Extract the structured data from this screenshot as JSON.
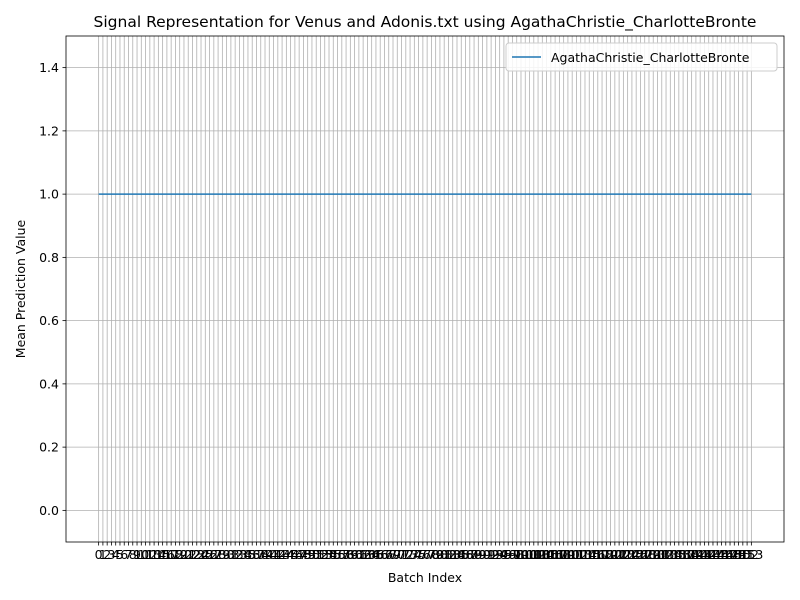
{
  "chart_data": {
    "type": "line",
    "title": "Signal Representation for Venus and Adonis.txt using AgathaChristie_CharlotteBronte",
    "xlabel": "Batch Index",
    "ylabel": "Mean Prediction Value",
    "x": [
      0,
      1,
      2,
      3,
      4,
      5,
      6,
      7,
      8,
      9,
      10,
      11,
      12,
      13,
      14,
      15,
      16,
      17,
      18,
      19,
      20,
      21,
      22,
      23,
      24,
      25,
      26,
      27,
      28,
      29,
      30,
      31,
      32,
      33,
      34,
      35,
      36,
      37,
      38,
      39,
      40,
      41,
      42,
      43,
      44,
      45,
      46,
      47,
      48,
      49,
      50,
      51,
      52,
      53,
      54,
      55,
      56,
      57,
      58,
      59,
      60,
      61,
      62,
      63,
      64,
      65,
      66,
      67,
      68,
      69,
      70,
      71,
      72,
      73,
      74,
      75,
      76,
      77,
      78,
      79,
      80,
      81,
      82,
      83,
      84,
      85,
      86,
      87,
      88,
      89,
      90,
      91,
      92,
      93,
      94,
      95,
      96,
      97,
      98,
      99,
      100,
      101,
      102,
      103,
      104,
      105,
      106,
      107,
      108,
      109,
      110,
      111,
      112,
      113,
      114,
      115,
      116,
      117,
      118,
      119,
      120,
      121,
      122,
      123,
      124,
      125,
      126,
      127,
      128,
      129,
      130,
      131,
      132,
      133,
      134,
      135,
      136,
      137,
      138,
      139,
      140,
      141,
      142,
      143,
      144,
      145,
      146,
      147,
      148,
      149,
      150,
      151,
      152,
      153
    ],
    "series": [
      {
        "name": "AgathaChristie_CharlotteBronte",
        "constant_value": 1.0,
        "color": "#1f77b4"
      }
    ],
    "ylim": [
      -0.1,
      1.5
    ],
    "yticks": [
      0.0,
      0.2,
      0.4,
      0.6,
      0.8,
      1.0,
      1.2,
      1.4
    ],
    "ytick_labels": [
      "0.0",
      "0.2",
      "0.4",
      "0.6",
      "0.8",
      "1.0",
      "1.2",
      "1.4"
    ],
    "grid": true,
    "legend_position": "upper right",
    "grid_color": "#b0b0b0"
  }
}
